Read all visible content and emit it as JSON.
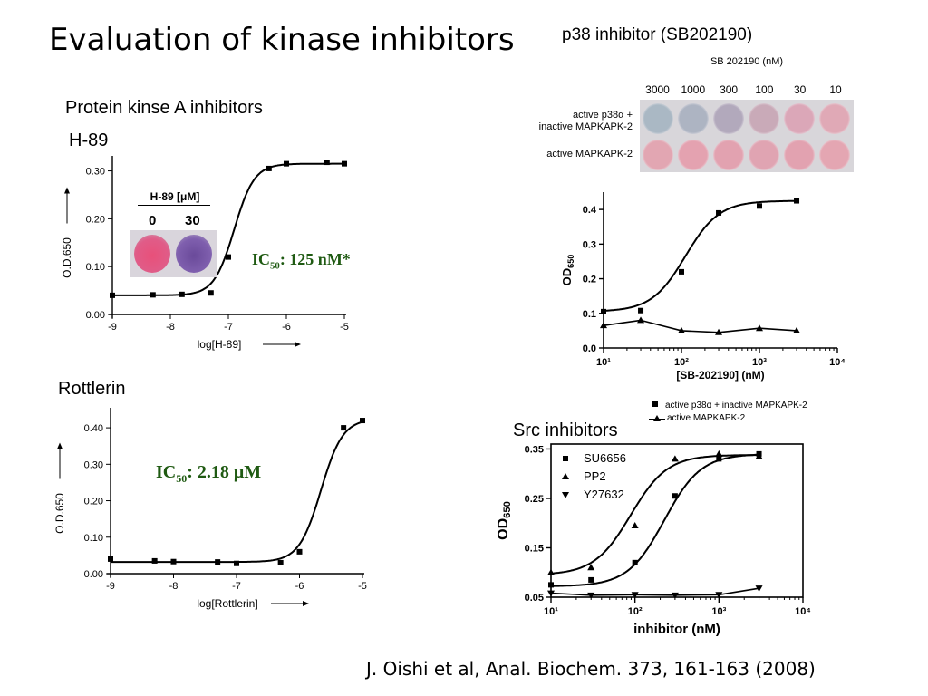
{
  "slide": {
    "title": "Evaluation of kinase inhibitors",
    "citation": "J. Oishi et al, Anal. Biochem. 373, 161-163 (2008)"
  },
  "pka": {
    "section_label": "Protein kinse A inhibitors",
    "compound_label": "H-89",
    "ic50_prefix": "IC",
    "ic50_sub": "50",
    "ic50_value": ": 125 nM*",
    "inset": {
      "header": "H-89 [μM]",
      "conc_low": "0",
      "conc_high": "30"
    }
  },
  "rottlerin": {
    "section_label": "Rottlerin",
    "ic50_prefix": "IC",
    "ic50_sub": "50",
    "ic50_value": ": 2.18 μM"
  },
  "p38": {
    "title": "p38 inhibitor (SB202190)",
    "plate": {
      "header": "SB 202190 (nM)",
      "concentrations": [
        "3000",
        "1000",
        "300",
        "100",
        "30",
        "10"
      ],
      "row1_label_line1": "active p38α +",
      "row1_label_line2": "inactive MAPKAPK-2",
      "row2_label": "active MAPKAPK-2",
      "row1_colors": [
        "#aab8c4",
        "#adb4c2",
        "#b2a9bc",
        "#c9aab8",
        "#dba7b8",
        "#e0a9b6"
      ],
      "row2_colors": [
        "#e2a6b2",
        "#e4a2b0",
        "#e2a2b0",
        "#e0a4b2",
        "#e2a2b0",
        "#e4a6b2"
      ]
    }
  },
  "src": {
    "title": "Src inhibitors"
  },
  "chart_data": [
    {
      "type": "line",
      "name": "h89",
      "xlabel": "log[H-89]",
      "ylabel": "O.D.650",
      "xlim": [
        -9,
        -5
      ],
      "ylim": [
        0,
        0.32
      ],
      "xticks": [
        "-9",
        "-8",
        "-7",
        "-6",
        "-5"
      ],
      "yticks": [
        "0.00",
        "0.10",
        "0.20",
        "0.30"
      ],
      "points": [
        [
          -9,
          0.04
        ],
        [
          -8.3,
          0.041
        ],
        [
          -7.8,
          0.042
        ],
        [
          -7.3,
          0.045
        ],
        [
          -7,
          0.12
        ],
        [
          -6.3,
          0.305
        ],
        [
          -6,
          0.315
        ],
        [
          -5.3,
          0.318
        ],
        [
          -5,
          0.315
        ]
      ],
      "fit": {
        "bottom": 0.04,
        "top": 0.315,
        "logec50": -6.9,
        "hill": 2.5
      }
    },
    {
      "type": "line",
      "name": "rottlerin",
      "xlabel": "log[Rottlerin]",
      "ylabel": "O.D.650",
      "xlim": [
        -9,
        -5
      ],
      "ylim": [
        0,
        0.44
      ],
      "xticks": [
        "-9",
        "-8",
        "-7",
        "-6",
        "-5"
      ],
      "yticks": [
        "0.00",
        "0.10",
        "0.20",
        "0.30",
        "0.40"
      ],
      "points": [
        [
          -9,
          0.04
        ],
        [
          -8.3,
          0.035
        ],
        [
          -8,
          0.033
        ],
        [
          -7.3,
          0.032
        ],
        [
          -7,
          0.028
        ],
        [
          -6.3,
          0.03
        ],
        [
          -6,
          0.06
        ],
        [
          -5.3,
          0.4
        ],
        [
          -5,
          0.42
        ]
      ],
      "fit": {
        "bottom": 0.032,
        "top": 0.425,
        "logec50": -5.66,
        "hill": 2.5
      }
    },
    {
      "type": "line",
      "name": "sb202190",
      "xlabel": "[SB-202190] (nM)",
      "ylabel": "OD650",
      "xlim": [
        1,
        4
      ],
      "ylim": [
        0,
        0.45
      ],
      "xticks": [
        "10¹",
        "10²",
        "10³",
        "10⁴"
      ],
      "yticks": [
        "0.0",
        "0.1",
        "0.2",
        "0.3",
        "0.4"
      ],
      "series": [
        {
          "name": "active p38α + inactive MAPKAPK-2",
          "marker": "square",
          "x": [
            10,
            30,
            100,
            300,
            1000,
            3000
          ],
          "values": [
            0.105,
            0.108,
            0.22,
            0.39,
            0.41,
            0.425
          ],
          "fit": {
            "bottom": 0.105,
            "top": 0.425,
            "logec50": 2.05,
            "hill": 2.0
          }
        },
        {
          "name": "active MAPKAPK-2",
          "marker": "triangle",
          "x": [
            10,
            30,
            100,
            300,
            1000,
            3000
          ],
          "values": [
            0.065,
            0.08,
            0.05,
            0.045,
            0.057,
            0.05
          ]
        }
      ]
    },
    {
      "type": "line",
      "name": "src",
      "xlabel": "inhibitor (nM)",
      "ylabel": "OD650",
      "xlim": [
        1,
        4
      ],
      "ylim": [
        0.05,
        0.36
      ],
      "xticks": [
        "10¹",
        "10²",
        "10³",
        "10⁴"
      ],
      "yticks": [
        "0.05",
        "0.15",
        "0.25",
        "0.35"
      ],
      "series": [
        {
          "name": "SU6656",
          "marker": "square",
          "x": [
            10,
            30,
            100,
            300,
            1000,
            3000
          ],
          "values": [
            0.075,
            0.085,
            0.12,
            0.255,
            0.33,
            0.34
          ],
          "fit": {
            "bottom": 0.072,
            "top": 0.34,
            "logec50": 2.35,
            "hill": 2.0
          }
        },
        {
          "name": "PP2",
          "marker": "triangle",
          "x": [
            10,
            30,
            100,
            300,
            1000,
            3000
          ],
          "values": [
            0.1,
            0.11,
            0.195,
            0.33,
            0.34,
            0.335
          ],
          "fit": {
            "bottom": 0.095,
            "top": 0.338,
            "logec50": 1.95,
            "hill": 2.0
          }
        },
        {
          "name": "Y27632",
          "marker": "triangle-down",
          "x": [
            10,
            30,
            100,
            300,
            1000,
            3000
          ],
          "values": [
            0.058,
            0.054,
            0.055,
            0.054,
            0.055,
            0.068
          ]
        }
      ]
    }
  ]
}
